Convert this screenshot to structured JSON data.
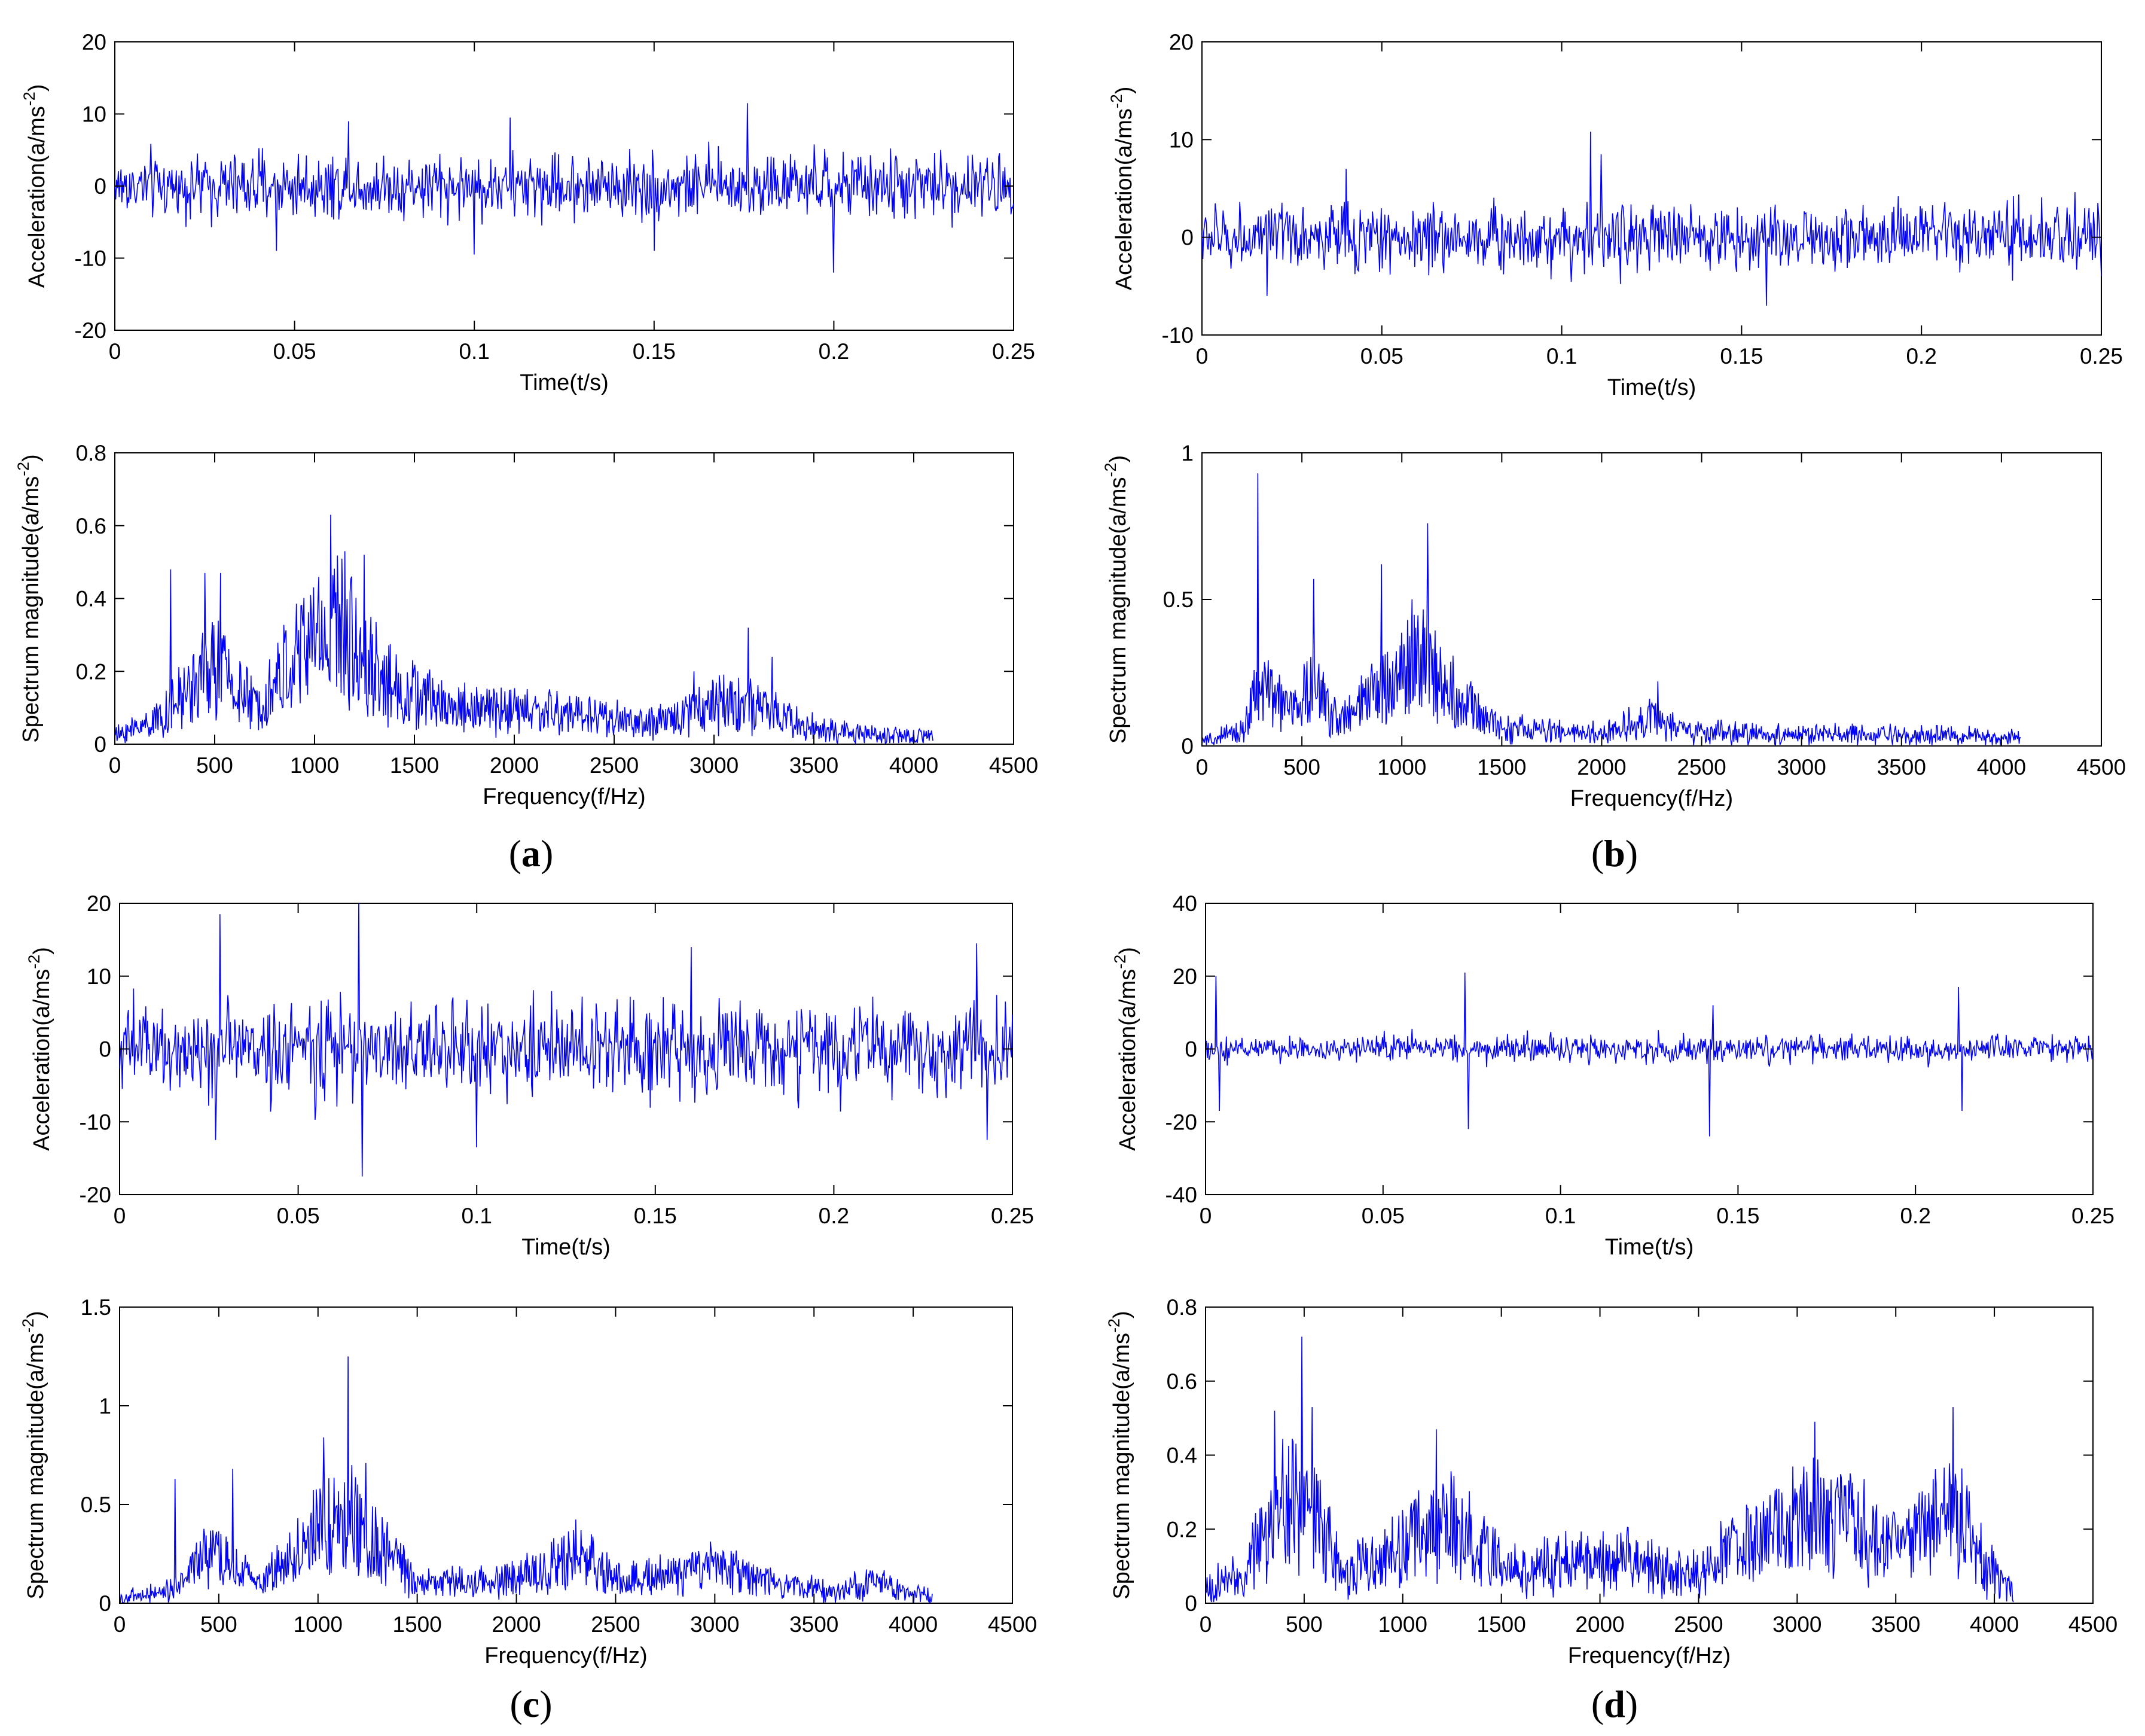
{
  "figure": {
    "panel_labels": [
      "a",
      "b",
      "c",
      "d"
    ],
    "line_color": "#0000ff",
    "axis_color": "#000000"
  },
  "chart_data": [
    {
      "panel": "a",
      "kind": "time",
      "type": "line",
      "xlabel": "Time(t/s)",
      "ylabel": "Acceleration(a/ms",
      "ylabel_sup": "-2",
      "ylabel_close": ")",
      "xlim": [
        0,
        0.25
      ],
      "ylim": [
        -20,
        20
      ],
      "xticks": [
        0,
        0.05,
        0.1,
        0.15,
        0.2,
        0.25
      ],
      "xtick_labels": [
        "0",
        "0.05",
        "0.1",
        "0.15",
        "0.2",
        "0.25"
      ],
      "yticks": [
        -20,
        -10,
        0,
        10,
        20
      ],
      "ytick_labels": [
        "-20",
        "-10",
        "0",
        "10",
        "20"
      ],
      "signal": {
        "n": 1024,
        "amp": 3.2,
        "clip": [
          -12,
          12
        ]
      },
      "peaks": [
        [
          0.176,
          11.5
        ],
        [
          0.2,
          -12
        ],
        [
          0.065,
          9
        ],
        [
          0.11,
          9.5
        ],
        [
          0.15,
          -9
        ],
        [
          0.045,
          -9
        ],
        [
          0.1,
          -9.5
        ]
      ]
    },
    {
      "panel": "a",
      "kind": "spectrum",
      "type": "line",
      "xlabel": "Frequency(f/Hz)",
      "ylabel": "Spectrum magnitude(a/ms",
      "ylabel_sup": "-2",
      "ylabel_close": ")",
      "xlim": [
        0,
        4500
      ],
      "ylim": [
        0,
        0.8
      ],
      "xticks": [
        0,
        500,
        1000,
        1500,
        2000,
        2500,
        3000,
        3500,
        4000,
        4500
      ],
      "xtick_labels": [
        "0",
        "500",
        "1000",
        "1500",
        "2000",
        "2500",
        "3000",
        "3500",
        "4000",
        "4500"
      ],
      "yticks": [
        0,
        0.2,
        0.4,
        0.6,
        0.8
      ],
      "ytick_labels": [
        "0",
        "0.2",
        "0.4",
        "0.6",
        "0.8"
      ],
      "fmax": 4096,
      "noise": 0.04,
      "envelope": [
        [
          0,
          0.02
        ],
        [
          250,
          0.08
        ],
        [
          500,
          0.22
        ],
        [
          700,
          0.1
        ],
        [
          1000,
          0.3
        ],
        [
          1100,
          0.33
        ],
        [
          1400,
          0.15
        ],
        [
          1700,
          0.1
        ],
        [
          2400,
          0.08
        ],
        [
          2700,
          0.05
        ],
        [
          2900,
          0.1
        ],
        [
          3100,
          0.12
        ],
        [
          3400,
          0.06
        ],
        [
          3600,
          0.03
        ],
        [
          4096,
          0.02
        ]
      ],
      "peaks": [
        [
          280,
          0.48
        ],
        [
          450,
          0.47
        ],
        [
          530,
          0.47
        ],
        [
          1080,
          0.63
        ],
        [
          1150,
          0.53
        ],
        [
          1250,
          0.52
        ],
        [
          3170,
          0.32
        ],
        [
          3290,
          0.24
        ],
        [
          2900,
          0.2
        ]
      ]
    },
    {
      "panel": "b",
      "kind": "time",
      "type": "line",
      "xlabel": "Time(t/s)",
      "ylabel": "Acceleration(a/ms",
      "ylabel_sup": "-2",
      "ylabel_close": ")",
      "xlim": [
        0,
        0.25
      ],
      "ylim": [
        -10,
        20
      ],
      "xticks": [
        0,
        0.05,
        0.1,
        0.15,
        0.2,
        0.25
      ],
      "xtick_labels": [
        "0",
        "0.05",
        "0.1",
        "0.15",
        "0.2",
        "0.25"
      ],
      "yticks": [
        -10,
        0,
        10,
        20
      ],
      "ytick_labels": [
        "-10",
        "0",
        "10",
        "20"
      ],
      "signal": {
        "n": 1024,
        "amp": 2.4,
        "clip": [
          -7,
          11
        ]
      },
      "peaks": [
        [
          0.108,
          10.8
        ],
        [
          0.111,
          8.5
        ],
        [
          0.04,
          7
        ],
        [
          0.157,
          -7
        ],
        [
          0.018,
          -6
        ]
      ]
    },
    {
      "panel": "b",
      "kind": "spectrum",
      "type": "line",
      "xlabel": "Frequency(f/Hz)",
      "ylabel": "Spectrum magnitude(a/ms",
      "ylabel_sup": "-2",
      "ylabel_close": ")",
      "xlim": [
        0,
        4500
      ],
      "ylim": [
        0,
        1
      ],
      "xticks": [
        0,
        500,
        1000,
        1500,
        2000,
        2500,
        3000,
        3500,
        4000,
        4500
      ],
      "xtick_labels": [
        "0",
        "500",
        "1000",
        "1500",
        "2000",
        "2500",
        "3000",
        "3500",
        "4000",
        "4500"
      ],
      "yticks": [
        0,
        0.5,
        1
      ],
      "ytick_labels": [
        "0",
        "0.5",
        "1"
      ],
      "fmax": 4096,
      "noise": 0.04,
      "envelope": [
        [
          0,
          0.01
        ],
        [
          200,
          0.05
        ],
        [
          280,
          0.2
        ],
        [
          450,
          0.12
        ],
        [
          550,
          0.2
        ],
        [
          700,
          0.08
        ],
        [
          900,
          0.2
        ],
        [
          1100,
          0.3
        ],
        [
          1300,
          0.15
        ],
        [
          1500,
          0.06
        ],
        [
          2000,
          0.04
        ],
        [
          2250,
          0.1
        ],
        [
          2400,
          0.05
        ],
        [
          2800,
          0.04
        ],
        [
          4096,
          0.03
        ]
      ],
      "peaks": [
        [
          280,
          0.93
        ],
        [
          560,
          0.57
        ],
        [
          900,
          0.62
        ],
        [
          1130,
          0.76
        ],
        [
          1050,
          0.5
        ],
        [
          2280,
          0.22
        ]
      ]
    },
    {
      "panel": "c",
      "kind": "time",
      "type": "line",
      "xlabel": "Time(t/s)",
      "ylabel": "Acceleration(a/ms",
      "ylabel_sup": "-2",
      "ylabel_close": ")",
      "xlim": [
        0,
        0.25
      ],
      "ylim": [
        -20,
        20
      ],
      "xticks": [
        0,
        0.05,
        0.1,
        0.15,
        0.2,
        0.25
      ],
      "xtick_labels": [
        "0",
        "0.05",
        "0.1",
        "0.15",
        "0.2",
        "0.25"
      ],
      "yticks": [
        -20,
        -10,
        0,
        10,
        20
      ],
      "ytick_labels": [
        "-20",
        "-10",
        "0",
        "10",
        "20"
      ],
      "signal": {
        "n": 1024,
        "amp": 4.6,
        "clip": [
          -14,
          14
        ]
      },
      "peaks": [
        [
          0.067,
          20
        ],
        [
          0.068,
          -17.5
        ],
        [
          0.028,
          18.5
        ],
        [
          0.027,
          -12.5
        ],
        [
          0.243,
          -12.5
        ],
        [
          0.16,
          14
        ],
        [
          0.24,
          14.5
        ],
        [
          0.1,
          -13.5
        ]
      ]
    },
    {
      "panel": "c",
      "kind": "spectrum",
      "type": "line",
      "xlabel": "Frequency(f/Hz)",
      "ylabel": "Spectrum magnitude(a/ms",
      "ylabel_sup": "-2",
      "ylabel_close": ")",
      "xlim": [
        0,
        4500
      ],
      "ylim": [
        0,
        1.5
      ],
      "xticks": [
        0,
        500,
        1000,
        1500,
        2000,
        2500,
        3000,
        3500,
        4000,
        4500
      ],
      "xtick_labels": [
        "0",
        "500",
        "1000",
        "1500",
        "2000",
        "2500",
        "3000",
        "3500",
        "4000",
        "4500"
      ],
      "yticks": [
        0,
        0.5,
        1,
        1.5
      ],
      "ytick_labels": [
        "0",
        "0.5",
        "1",
        "1.5"
      ],
      "fmax": 4096,
      "noise": 0.06,
      "envelope": [
        [
          0,
          0.02
        ],
        [
          250,
          0.06
        ],
        [
          450,
          0.25
        ],
        [
          700,
          0.1
        ],
        [
          1000,
          0.35
        ],
        [
          1150,
          0.45
        ],
        [
          1300,
          0.3
        ],
        [
          1500,
          0.1
        ],
        [
          2000,
          0.12
        ],
        [
          2300,
          0.25
        ],
        [
          2500,
          0.12
        ],
        [
          2800,
          0.15
        ],
        [
          3000,
          0.18
        ],
        [
          3300,
          0.1
        ],
        [
          3600,
          0.06
        ],
        [
          3800,
          0.1
        ],
        [
          4096,
          0.03
        ]
      ],
      "peaks": [
        [
          280,
          0.63
        ],
        [
          570,
          0.68
        ],
        [
          1030,
          0.84
        ],
        [
          1150,
          1.25
        ],
        [
          1240,
          0.71
        ],
        [
          2290,
          0.37
        ],
        [
          2990,
          0.24
        ]
      ]
    },
    {
      "panel": "d",
      "kind": "time",
      "type": "line",
      "xlabel": "Time(t/s)",
      "ylabel": "Acceleration(a/ms",
      "ylabel_sup": "-2",
      "ylabel_close": ")",
      "xlim": [
        0,
        0.25
      ],
      "ylim": [
        -40,
        40
      ],
      "xticks": [
        0,
        0.05,
        0.1,
        0.15,
        0.2,
        0.25
      ],
      "xtick_labels": [
        "0",
        "0.05",
        "0.1",
        "0.15",
        "0.2",
        "0.25"
      ],
      "yticks": [
        -40,
        -20,
        0,
        20,
        40
      ],
      "ytick_labels": [
        "-40",
        "-20",
        "0",
        "20",
        "40"
      ],
      "signal": {
        "n": 1024,
        "amp": 2.6,
        "clip": [
          -9,
          9
        ]
      },
      "peaks": [
        [
          0.073,
          21
        ],
        [
          0.074,
          -22
        ],
        [
          0.142,
          -24
        ],
        [
          0.143,
          12
        ],
        [
          0.212,
          17
        ],
        [
          0.213,
          -17
        ],
        [
          0.003,
          20
        ],
        [
          0.004,
          -17
        ]
      ]
    },
    {
      "panel": "d",
      "kind": "spectrum",
      "type": "line",
      "xlabel": "Frequency(f/Hz)",
      "ylabel": "Spectrum magnitude(a/ms",
      "ylabel_sup": "-2",
      "ylabel_close": ")",
      "xlim": [
        0,
        4500
      ],
      "ylim": [
        0,
        0.8
      ],
      "xticks": [
        0,
        500,
        1000,
        1500,
        2000,
        2500,
        3000,
        3500,
        4000,
        4500
      ],
      "xtick_labels": [
        "0",
        "500",
        "1000",
        "1500",
        "2000",
        "2500",
        "3000",
        "3500",
        "4000",
        "4500"
      ],
      "yticks": [
        0,
        0.2,
        0.4,
        0.6,
        0.8
      ],
      "ytick_labels": [
        "0",
        "0.2",
        "0.4",
        "0.6",
        "0.8"
      ],
      "fmax": 4096,
      "noise": 0.07,
      "envelope": [
        [
          0,
          0.03
        ],
        [
          200,
          0.08
        ],
        [
          400,
          0.28
        ],
        [
          550,
          0.25
        ],
        [
          700,
          0.08
        ],
        [
          1000,
          0.15
        ],
        [
          1200,
          0.22
        ],
        [
          1450,
          0.15
        ],
        [
          1500,
          0.08
        ],
        [
          1900,
          0.12
        ],
        [
          2500,
          0.08
        ],
        [
          2700,
          0.15
        ],
        [
          3100,
          0.25
        ],
        [
          3300,
          0.22
        ],
        [
          3500,
          0.14
        ],
        [
          3800,
          0.25
        ],
        [
          3950,
          0.1
        ],
        [
          4096,
          0.03
        ]
      ],
      "peaks": [
        [
          490,
          0.72
        ],
        [
          350,
          0.52
        ],
        [
          540,
          0.53
        ],
        [
          1170,
          0.47
        ],
        [
          3090,
          0.49
        ],
        [
          3790,
          0.53
        ]
      ]
    }
  ]
}
